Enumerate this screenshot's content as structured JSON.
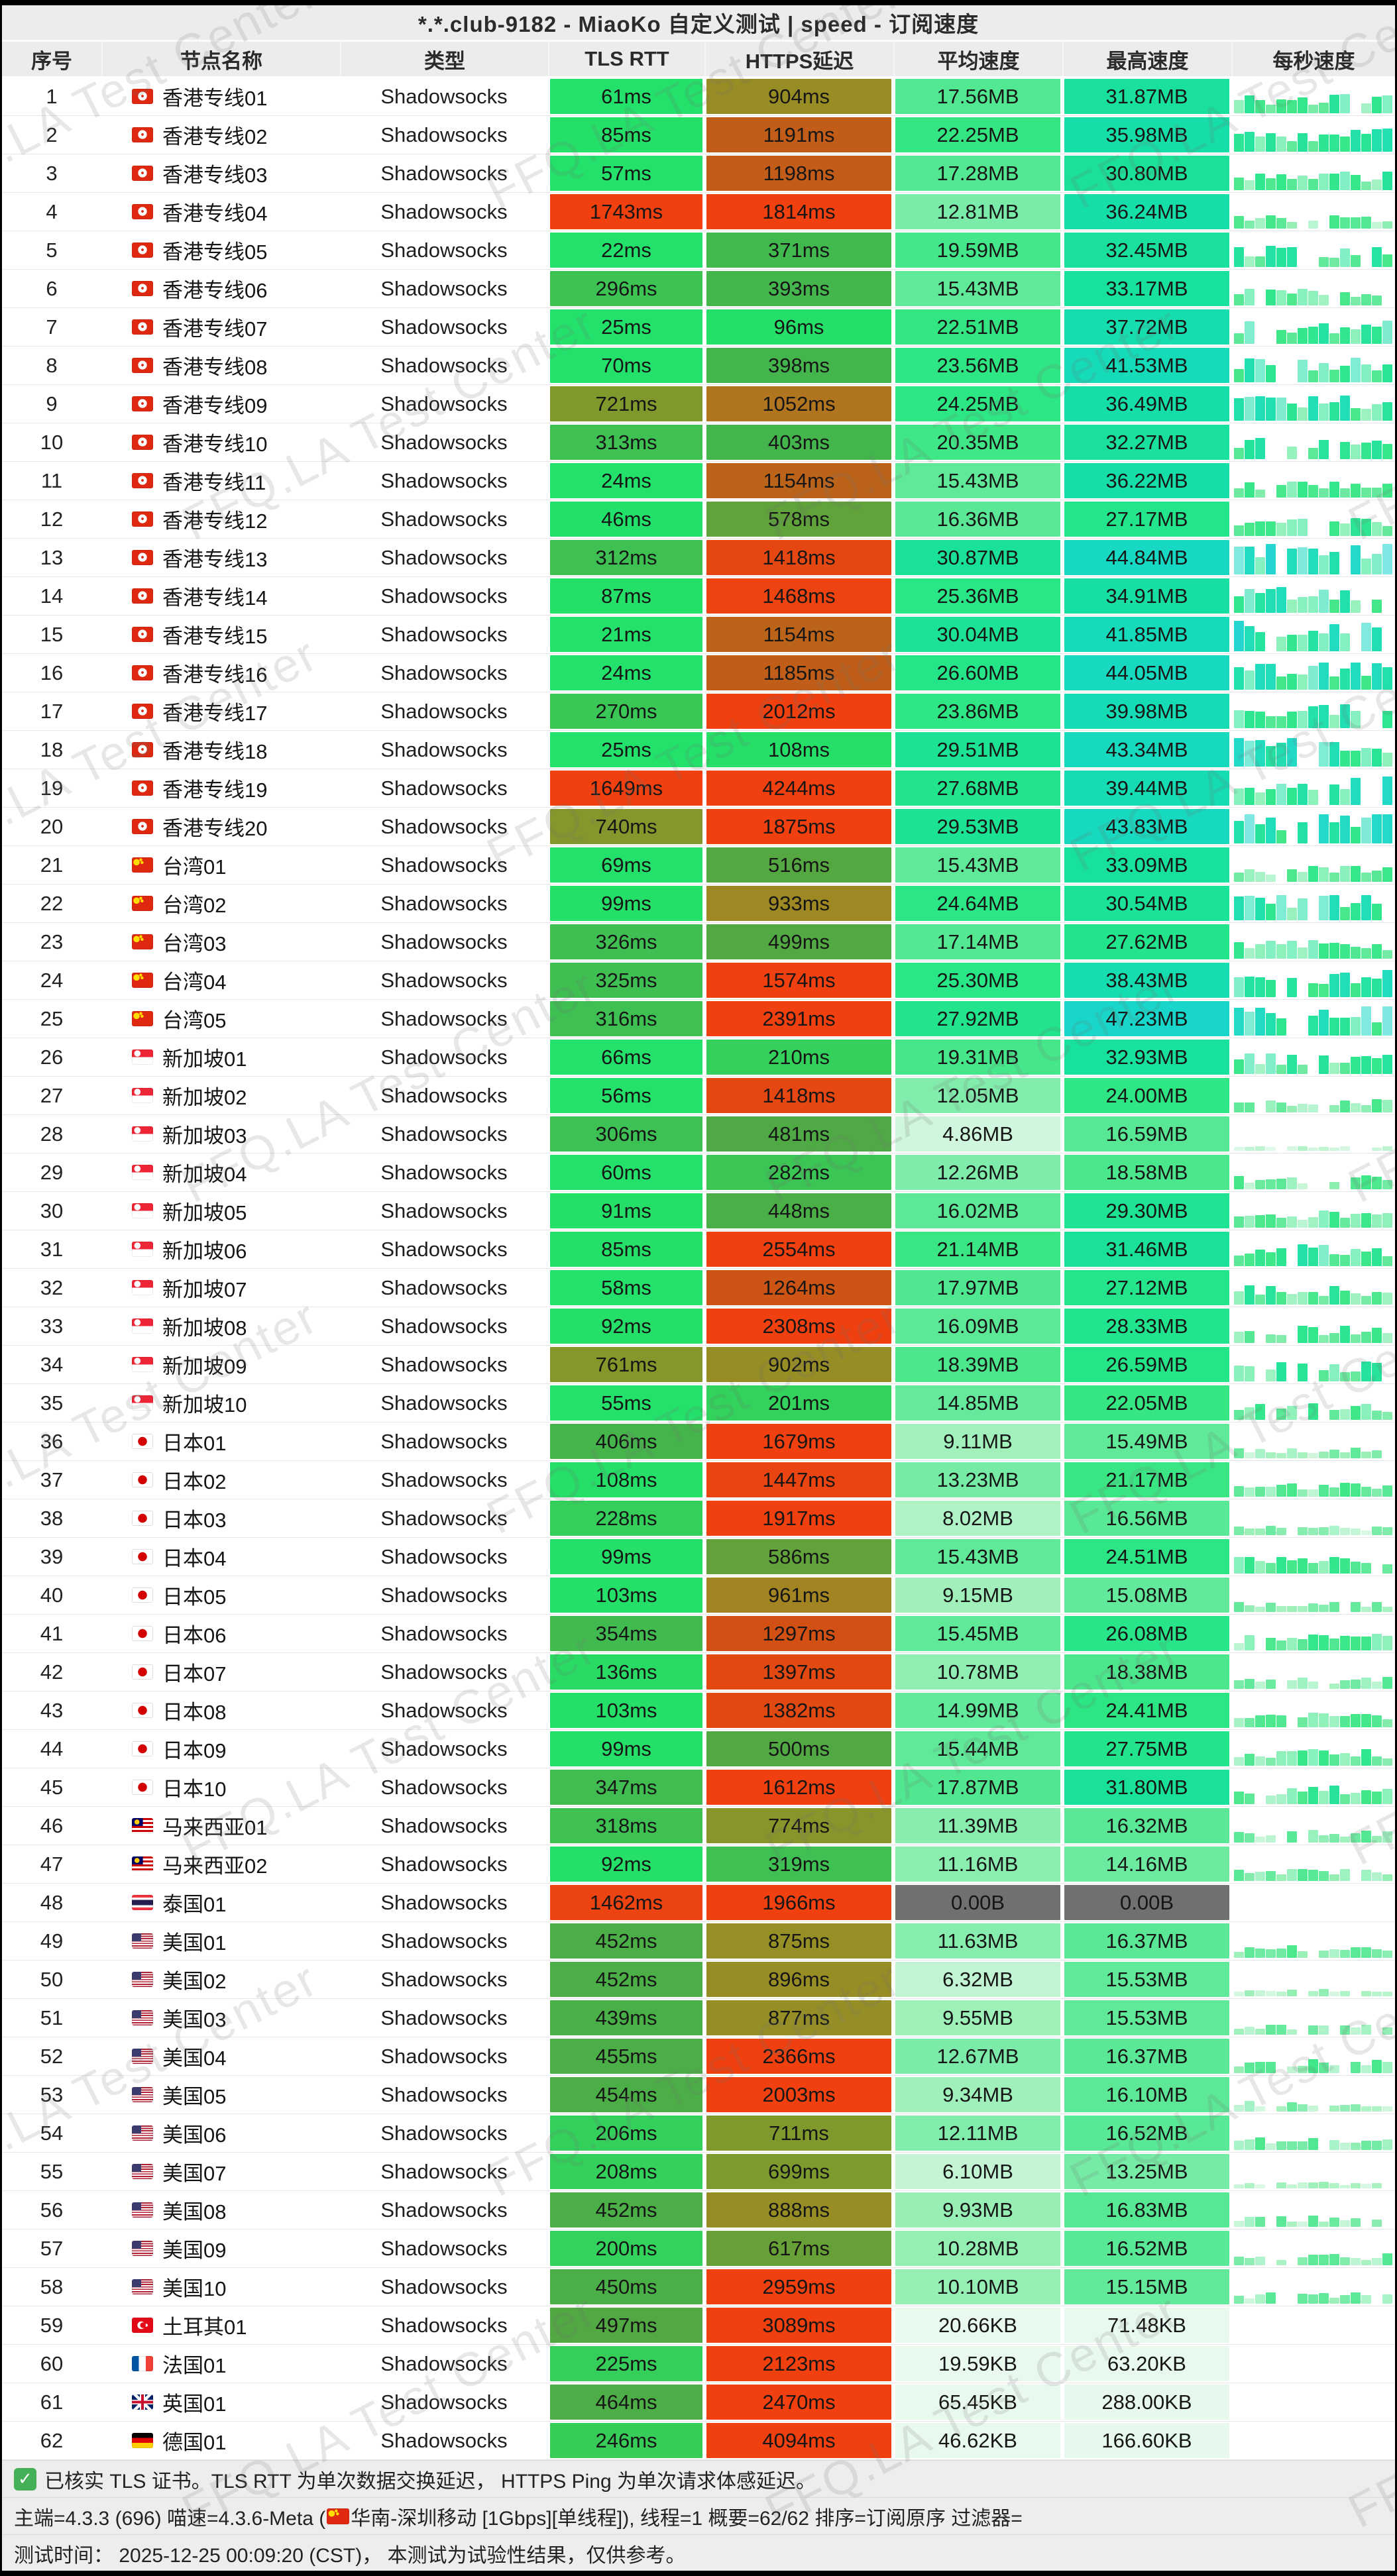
{
  "title": "*.*.club-9182 - MiaoKo 自定义测试 | speed - 订阅速度",
  "watermark": "FFQ.LA Test Center",
  "columns": [
    "序号",
    "节点名称",
    "类型",
    "TLS RTT",
    "HTTPS延迟",
    "平均速度",
    "最高速度",
    "每秒速度"
  ],
  "row_fields": [
    "index",
    "flag",
    "name",
    "type",
    "tls_rtt_ms",
    "https_delay_ms",
    "avg_speed",
    "avg_unit",
    "max_speed",
    "max_unit"
  ],
  "colors": {
    "latency_scale_ms_rgb": [
      [
        0,
        33,
        226,
        107
      ],
      [
        100,
        36,
        224,
        105
      ],
      [
        200,
        50,
        210,
        92
      ],
      [
        300,
        61,
        194,
        84
      ],
      [
        400,
        68,
        181,
        76
      ],
      [
        500,
        82,
        168,
        67
      ],
      [
        600,
        99,
        161,
        56
      ],
      [
        700,
        125,
        154,
        46
      ],
      [
        800,
        141,
        147,
        40
      ],
      [
        900,
        151,
        141,
        37
      ],
      [
        1000,
        169,
        126,
        32
      ],
      [
        1100,
        182,
        108,
        28
      ],
      [
        1200,
        194,
        92,
        24
      ],
      [
        1300,
        210,
        80,
        20
      ],
      [
        1400,
        227,
        72,
        18
      ],
      [
        1500,
        240,
        64,
        16
      ]
    ],
    "speed_scale_mb_rgb": [
      [
        0,
        232,
        249,
        238
      ],
      [
        2,
        222,
        248,
        230
      ],
      [
        5,
        207,
        246,
        221
      ],
      [
        8,
        175,
        242,
        198
      ],
      [
        10,
        151,
        239,
        180
      ],
      [
        12,
        131,
        236,
        173
      ],
      [
        15,
        99,
        233,
        155
      ],
      [
        18,
        79,
        231,
        143
      ],
      [
        20,
        65,
        231,
        135
      ],
      [
        22,
        53,
        230,
        130
      ],
      [
        25,
        42,
        230,
        133
      ],
      [
        28,
        33,
        228,
        141
      ],
      [
        30,
        27,
        226,
        149
      ],
      [
        33,
        24,
        224,
        158
      ],
      [
        36,
        22,
        222,
        168
      ],
      [
        40,
        21,
        220,
        180
      ],
      [
        44,
        22,
        217,
        192
      ],
      [
        48,
        25,
        213,
        203
      ],
      [
        50,
        26,
        211,
        208
      ]
    ],
    "zero_speed_gray": "#707070",
    "bar_green": "#2be57c"
  },
  "rows": [
    [
      1,
      "hk",
      "香港专线01",
      "Shadowsocks",
      61,
      904,
      17.56,
      "MB",
      31.87,
      "MB"
    ],
    [
      2,
      "hk",
      "香港专线02",
      "Shadowsocks",
      85,
      1191,
      22.25,
      "MB",
      35.98,
      "MB"
    ],
    [
      3,
      "hk",
      "香港专线03",
      "Shadowsocks",
      57,
      1198,
      17.28,
      "MB",
      30.8,
      "MB"
    ],
    [
      4,
      "hk",
      "香港专线04",
      "Shadowsocks",
      1743,
      1814,
      12.81,
      "MB",
      36.24,
      "MB"
    ],
    [
      5,
      "hk",
      "香港专线05",
      "Shadowsocks",
      22,
      371,
      19.59,
      "MB",
      32.45,
      "MB"
    ],
    [
      6,
      "hk",
      "香港专线06",
      "Shadowsocks",
      296,
      393,
      15.43,
      "MB",
      33.17,
      "MB"
    ],
    [
      7,
      "hk",
      "香港专线07",
      "Shadowsocks",
      25,
      96,
      22.51,
      "MB",
      37.72,
      "MB"
    ],
    [
      8,
      "hk",
      "香港专线08",
      "Shadowsocks",
      70,
      398,
      23.56,
      "MB",
      41.53,
      "MB"
    ],
    [
      9,
      "hk",
      "香港专线09",
      "Shadowsocks",
      721,
      1052,
      24.25,
      "MB",
      36.49,
      "MB"
    ],
    [
      10,
      "hk",
      "香港专线10",
      "Shadowsocks",
      313,
      403,
      20.35,
      "MB",
      32.27,
      "MB"
    ],
    [
      11,
      "hk",
      "香港专线11",
      "Shadowsocks",
      24,
      1154,
      15.43,
      "MB",
      36.22,
      "MB"
    ],
    [
      12,
      "hk",
      "香港专线12",
      "Shadowsocks",
      46,
      578,
      16.36,
      "MB",
      27.17,
      "MB"
    ],
    [
      13,
      "hk",
      "香港专线13",
      "Shadowsocks",
      312,
      1418,
      30.87,
      "MB",
      44.84,
      "MB"
    ],
    [
      14,
      "hk",
      "香港专线14",
      "Shadowsocks",
      87,
      1468,
      25.36,
      "MB",
      34.91,
      "MB"
    ],
    [
      15,
      "hk",
      "香港专线15",
      "Shadowsocks",
      21,
      1154,
      30.04,
      "MB",
      41.85,
      "MB"
    ],
    [
      16,
      "hk",
      "香港专线16",
      "Shadowsocks",
      24,
      1185,
      26.6,
      "MB",
      44.05,
      "MB"
    ],
    [
      17,
      "hk",
      "香港专线17",
      "Shadowsocks",
      270,
      2012,
      23.86,
      "MB",
      39.98,
      "MB"
    ],
    [
      18,
      "hk",
      "香港专线18",
      "Shadowsocks",
      25,
      108,
      29.51,
      "MB",
      43.34,
      "MB"
    ],
    [
      19,
      "hk",
      "香港专线19",
      "Shadowsocks",
      1649,
      4244,
      27.68,
      "MB",
      39.44,
      "MB"
    ],
    [
      20,
      "hk",
      "香港专线20",
      "Shadowsocks",
      740,
      1875,
      29.53,
      "MB",
      43.83,
      "MB"
    ],
    [
      21,
      "cn",
      "台湾01",
      "Shadowsocks",
      69,
      516,
      15.43,
      "MB",
      33.09,
      "MB"
    ],
    [
      22,
      "cn",
      "台湾02",
      "Shadowsocks",
      99,
      933,
      24.64,
      "MB",
      30.54,
      "MB"
    ],
    [
      23,
      "cn",
      "台湾03",
      "Shadowsocks",
      326,
      499,
      17.14,
      "MB",
      27.62,
      "MB"
    ],
    [
      24,
      "cn",
      "台湾04",
      "Shadowsocks",
      325,
      1574,
      25.3,
      "MB",
      38.43,
      "MB"
    ],
    [
      25,
      "cn",
      "台湾05",
      "Shadowsocks",
      316,
      2391,
      27.92,
      "MB",
      47.23,
      "MB"
    ],
    [
      26,
      "sg",
      "新加坡01",
      "Shadowsocks",
      66,
      210,
      19.31,
      "MB",
      32.93,
      "MB"
    ],
    [
      27,
      "sg",
      "新加坡02",
      "Shadowsocks",
      56,
      1418,
      12.05,
      "MB",
      24.0,
      "MB"
    ],
    [
      28,
      "sg",
      "新加坡03",
      "Shadowsocks",
      306,
      481,
      4.86,
      "MB",
      16.59,
      "MB"
    ],
    [
      29,
      "sg",
      "新加坡04",
      "Shadowsocks",
      60,
      282,
      12.26,
      "MB",
      18.58,
      "MB"
    ],
    [
      30,
      "sg",
      "新加坡05",
      "Shadowsocks",
      91,
      448,
      16.02,
      "MB",
      29.3,
      "MB"
    ],
    [
      31,
      "sg",
      "新加坡06",
      "Shadowsocks",
      85,
      2554,
      21.14,
      "MB",
      31.46,
      "MB"
    ],
    [
      32,
      "sg",
      "新加坡07",
      "Shadowsocks",
      58,
      1264,
      17.97,
      "MB",
      27.12,
      "MB"
    ],
    [
      33,
      "sg",
      "新加坡08",
      "Shadowsocks",
      92,
      2308,
      16.09,
      "MB",
      28.33,
      "MB"
    ],
    [
      34,
      "sg",
      "新加坡09",
      "Shadowsocks",
      761,
      902,
      18.39,
      "MB",
      26.59,
      "MB"
    ],
    [
      35,
      "sg",
      "新加坡10",
      "Shadowsocks",
      55,
      201,
      14.85,
      "MB",
      22.05,
      "MB"
    ],
    [
      36,
      "jp",
      "日本01",
      "Shadowsocks",
      406,
      1679,
      9.11,
      "MB",
      15.49,
      "MB"
    ],
    [
      37,
      "jp",
      "日本02",
      "Shadowsocks",
      108,
      1447,
      13.23,
      "MB",
      21.17,
      "MB"
    ],
    [
      38,
      "jp",
      "日本03",
      "Shadowsocks",
      228,
      1917,
      8.02,
      "MB",
      16.56,
      "MB"
    ],
    [
      39,
      "jp",
      "日本04",
      "Shadowsocks",
      99,
      586,
      15.43,
      "MB",
      24.51,
      "MB"
    ],
    [
      40,
      "jp",
      "日本05",
      "Shadowsocks",
      103,
      961,
      9.15,
      "MB",
      15.08,
      "MB"
    ],
    [
      41,
      "jp",
      "日本06",
      "Shadowsocks",
      354,
      1297,
      15.45,
      "MB",
      26.08,
      "MB"
    ],
    [
      42,
      "jp",
      "日本07",
      "Shadowsocks",
      136,
      1397,
      10.78,
      "MB",
      18.38,
      "MB"
    ],
    [
      43,
      "jp",
      "日本08",
      "Shadowsocks",
      103,
      1382,
      14.99,
      "MB",
      24.41,
      "MB"
    ],
    [
      44,
      "jp",
      "日本09",
      "Shadowsocks",
      99,
      500,
      15.44,
      "MB",
      27.75,
      "MB"
    ],
    [
      45,
      "jp",
      "日本10",
      "Shadowsocks",
      347,
      1612,
      17.87,
      "MB",
      31.8,
      "MB"
    ],
    [
      46,
      "my",
      "马来西亚01",
      "Shadowsocks",
      318,
      774,
      11.39,
      "MB",
      16.32,
      "MB"
    ],
    [
      47,
      "my",
      "马来西亚02",
      "Shadowsocks",
      92,
      319,
      11.16,
      "MB",
      14.16,
      "MB"
    ],
    [
      48,
      "th",
      "泰国01",
      "Shadowsocks",
      1462,
      1966,
      0.0,
      "B",
      0.0,
      "B"
    ],
    [
      49,
      "us",
      "美国01",
      "Shadowsocks",
      452,
      875,
      11.63,
      "MB",
      16.37,
      "MB"
    ],
    [
      50,
      "us",
      "美国02",
      "Shadowsocks",
      452,
      896,
      6.32,
      "MB",
      15.53,
      "MB"
    ],
    [
      51,
      "us",
      "美国03",
      "Shadowsocks",
      439,
      877,
      9.55,
      "MB",
      15.53,
      "MB"
    ],
    [
      52,
      "us",
      "美国04",
      "Shadowsocks",
      455,
      2366,
      12.67,
      "MB",
      16.37,
      "MB"
    ],
    [
      53,
      "us",
      "美国05",
      "Shadowsocks",
      454,
      2003,
      9.34,
      "MB",
      16.1,
      "MB"
    ],
    [
      54,
      "us",
      "美国06",
      "Shadowsocks",
      206,
      711,
      12.11,
      "MB",
      16.52,
      "MB"
    ],
    [
      55,
      "us",
      "美国07",
      "Shadowsocks",
      208,
      699,
      6.1,
      "MB",
      13.25,
      "MB"
    ],
    [
      56,
      "us",
      "美国08",
      "Shadowsocks",
      452,
      888,
      9.93,
      "MB",
      16.83,
      "MB"
    ],
    [
      57,
      "us",
      "美国09",
      "Shadowsocks",
      200,
      617,
      10.28,
      "MB",
      16.52,
      "MB"
    ],
    [
      58,
      "us",
      "美国10",
      "Shadowsocks",
      450,
      2959,
      10.1,
      "MB",
      15.15,
      "MB"
    ],
    [
      59,
      "tr",
      "土耳其01",
      "Shadowsocks",
      497,
      3089,
      20.66,
      "KB",
      71.48,
      "KB"
    ],
    [
      60,
      "fr",
      "法国01",
      "Shadowsocks",
      225,
      2123,
      19.59,
      "KB",
      63.2,
      "KB"
    ],
    [
      61,
      "gb",
      "英国01",
      "Shadowsocks",
      464,
      2470,
      65.45,
      "KB",
      288.0,
      "KB"
    ],
    [
      62,
      "de",
      "德国01",
      "Shadowsocks",
      246,
      4094,
      46.62,
      "KB",
      166.6,
      "KB"
    ]
  ],
  "footer": {
    "line1": "已核实 TLS 证书。TLS RTT 为单次数据交换延迟，  HTTPS Ping 为单次请求体感延迟。",
    "line2_before_flag": "主端=4.3.3 (696) 喵速=4.3.6-Meta (",
    "line2_after_flag": "华南-深圳移动 [1Gbps][单线程]), 线程=1 概要=62/62 排序=订阅原序 过滤器=",
    "line3": "测试时间： 2025-12-25 00:09:20 (CST)， 本测试为试验性结果，仅供参考。"
  }
}
